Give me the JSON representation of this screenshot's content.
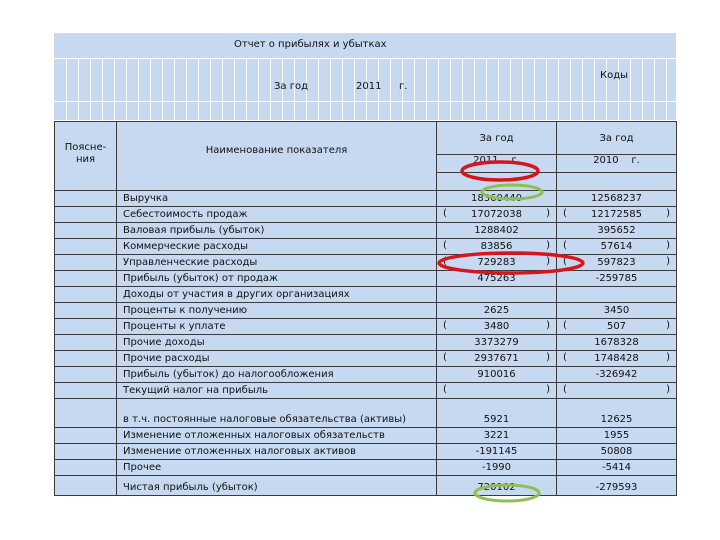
{
  "report": {
    "title": "Отчет о прибылях и убытках",
    "period_label": "За год",
    "period_year": "2011",
    "period_suffix": "г.",
    "codes_label": "Коды"
  },
  "columns": {
    "notes": "Поясне-ния",
    "indicator": "Наименование показателя",
    "col1_label": "За год",
    "col1_year": "2011",
    "col1_suffix": "г.",
    "col2_label": "За год",
    "col2_year": "2010",
    "col2_suffix": "г."
  },
  "rows": [
    {
      "name": "Выручка",
      "v2011": "18360440",
      "v2010": "12568237",
      "p1": false,
      "p2": false
    },
    {
      "name": "Себестоимость продаж",
      "v2011": "17072038",
      "v2010": "12172585",
      "p1": true,
      "p2": true
    },
    {
      "name": "Валовая прибыль (убыток)",
      "v2011": "1288402",
      "v2010": "395652",
      "p1": false,
      "p2": false
    },
    {
      "name": "Коммерческие расходы",
      "v2011": "83856",
      "v2010": "57614",
      "p1": true,
      "p2": true
    },
    {
      "name": "Управленческие расходы",
      "v2011": "729283",
      "v2010": "597823",
      "p1": true,
      "p2": true
    },
    {
      "name": " Прибыль (убыток) от продаж",
      "v2011": "475263",
      "v2010": "-259785",
      "p1": false,
      "p2": false
    },
    {
      "name": "Доходы от участия в других организациях",
      "v2011": "",
      "v2010": "",
      "p1": false,
      "p2": false
    },
    {
      "name": "Проценты к получению",
      "v2011": "2625",
      "v2010": "3450",
      "p1": false,
      "p2": false
    },
    {
      "name": "Проценты к уплате",
      "v2011": "3480",
      "v2010": "507",
      "p1": true,
      "p2": true
    },
    {
      "name": "Прочие доходы",
      "v2011": "3373279",
      "v2010": "1678328",
      "p1": false,
      "p2": false
    },
    {
      "name": "Прочие расходы",
      "v2011": "2937671",
      "v2010": "1748428",
      "p1": true,
      "p2": true
    },
    {
      "name": " Прибыль (убыток) до налогообложения",
      "v2011": "910016",
      "v2010": "-326942",
      "p1": false,
      "p2": false
    },
    {
      "name": "Текущий налог на прибыль",
      "v2011": "",
      "v2010": "",
      "p1": true,
      "p2": true
    },
    {
      "name": " в т.ч. постоянные налоговые обязательства (активы)",
      "v2011": "5921",
      "v2010": "12625",
      "p1": false,
      "p2": false,
      "tall": true
    },
    {
      "name": "Изменение отложенных налоговых обязательств",
      "v2011": "3221",
      "v2010": "1955",
      "p1": false,
      "p2": false
    },
    {
      "name": "Изменение отложенных налоговых активов",
      "v2011": "-191145",
      "v2010": "50808",
      "p1": false,
      "p2": false
    },
    {
      "name": "Прочее",
      "v2011": "-1990",
      "v2010": "-5414",
      "p1": false,
      "p2": false
    },
    {
      "name": " Чистая прибыль (убыток)",
      "v2011": "720102",
      "v2010": "-279593",
      "p1": false,
      "p2": false,
      "tall2": true
    }
  ],
  "paren_open": "(",
  "paren_close": ")",
  "marks": {
    "red": "#d9141b",
    "green": "#8cc152"
  }
}
